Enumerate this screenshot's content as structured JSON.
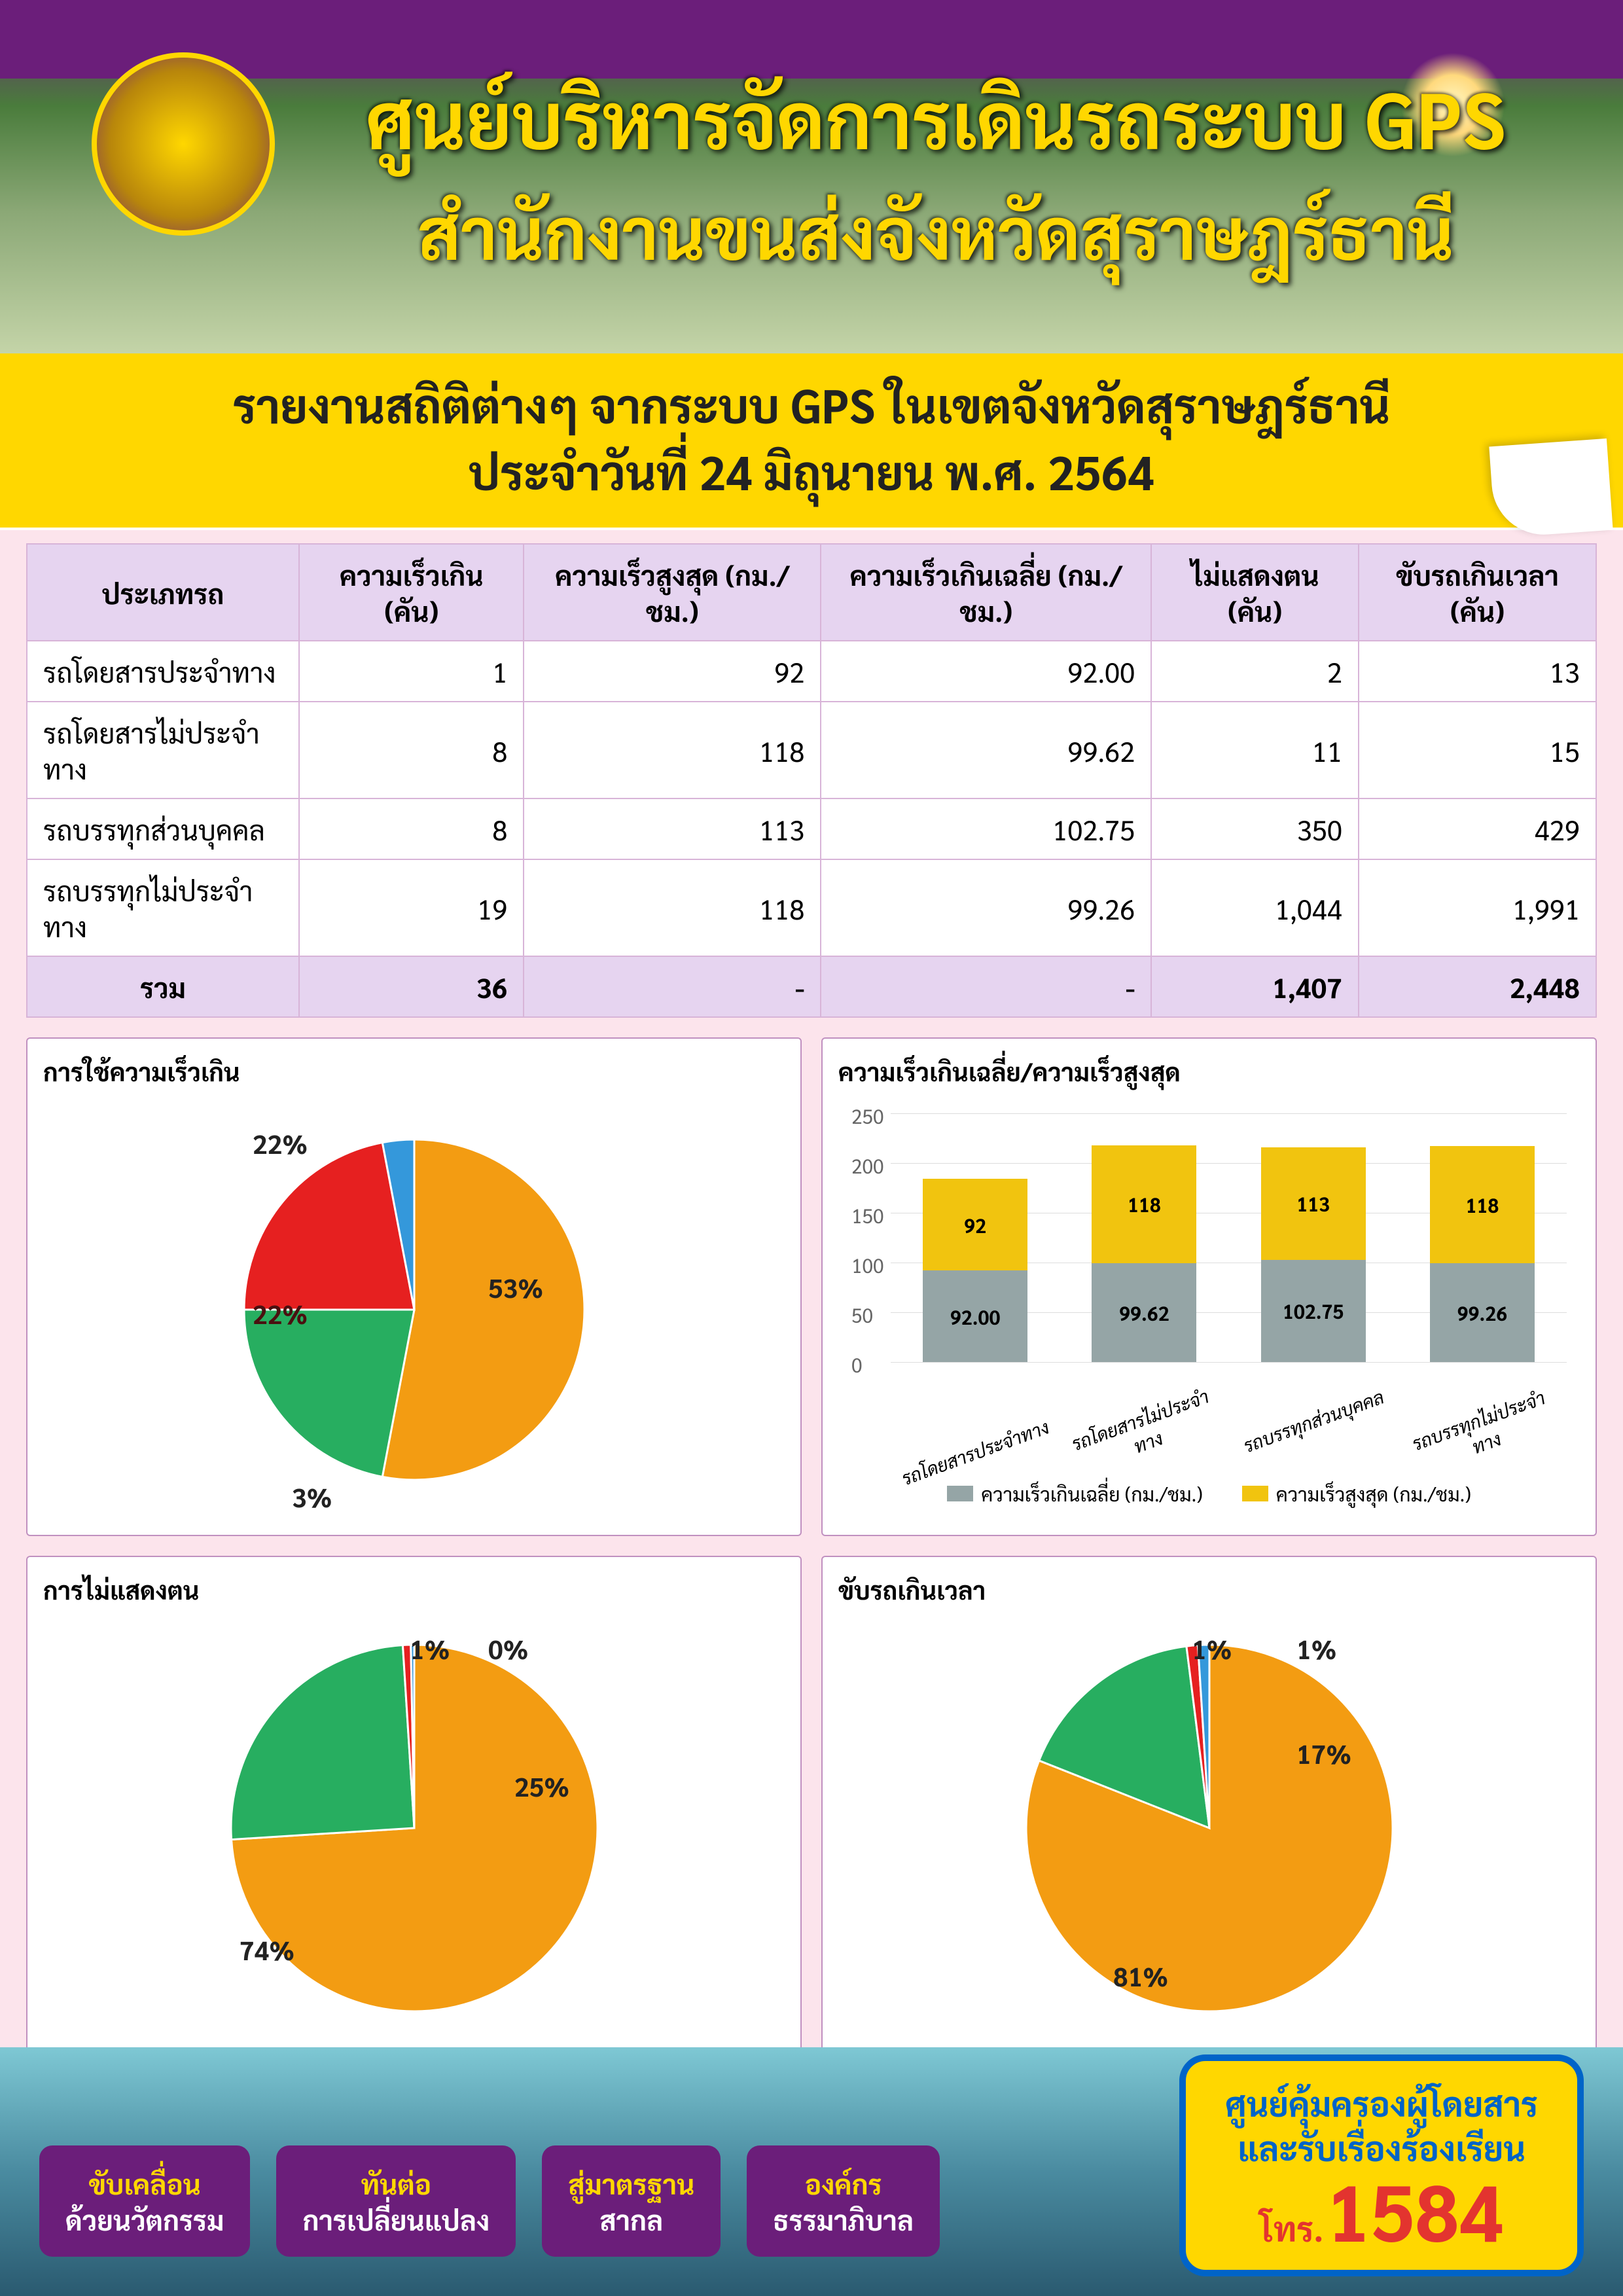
{
  "header": {
    "title_main": "ศูนย์บริหารจัดการเดินรถระบบ GPS",
    "title_sub": "สำนักงานขนส่งจังหวัดสุราษฎร์ธานี"
  },
  "banner": {
    "line1": "รายงานสถิติต่างๆ จากระบบ GPS ในเขตจังหวัดสุราษฎร์ธานี",
    "line2": "ประจำวันที่ 24  มิถุนายน  พ.ศ. 2564"
  },
  "table": {
    "columns": [
      "ประเภทรถ",
      "ความเร็วเกิน (คัน)",
      "ความเร็วสูงสุด (กม./ชม.)",
      "ความเร็วเกินเฉลี่ย (กม./ชม.)",
      "ไม่แสดงตน (คัน)",
      "ขับรถเกินเวลา (คัน)"
    ],
    "rows": [
      [
        "รถโดยสารประจำทาง",
        "1",
        "92",
        "92.00",
        "2",
        "13"
      ],
      [
        "รถโดยสารไม่ประจำทาง",
        "8",
        "118",
        "99.62",
        "11",
        "15"
      ],
      [
        "รถบรรทุกส่วนบุคคล",
        "8",
        "113",
        "102.75",
        "350",
        "429"
      ],
      [
        "รถบรรทุกไม่ประจำทาง",
        "19",
        "118",
        "99.26",
        "1,044",
        "1,991"
      ]
    ],
    "total_label": "รวม",
    "total": [
      "36",
      "-",
      "-",
      "1,407",
      "2,448"
    ]
  },
  "colors": {
    "orange": "#f39c12",
    "green": "#27ae60",
    "red": "#e62020",
    "blue": "#3498db",
    "grey": "#95a5a6",
    "yellow": "#f1c40f"
  },
  "pie1": {
    "title": "การใช้ความเร็วเกิน",
    "slices": [
      {
        "label": "53%",
        "value": 53,
        "color": "#f39c12"
      },
      {
        "label": "22%",
        "value": 22,
        "color": "#27ae60"
      },
      {
        "label": "22%",
        "value": 22,
        "color": "#e62020"
      },
      {
        "label": "3%",
        "value": 3,
        "color": "#3498db"
      }
    ]
  },
  "barchart": {
    "title": "ความเร็วเกินเฉลี่ย/ความเร็วสูงสุด",
    "ylim": 250,
    "yticks": [
      0,
      50,
      100,
      150,
      200,
      250
    ],
    "categories": [
      "รถโดยสารประจำทาง",
      "รถโดยสารไม่ประจำทาง",
      "รถบรรทุกส่วนบุคคล",
      "รถบรรทุกไม่ประจำทาง"
    ],
    "series_grey_label": "ความเร็วเกินเฉลี่ย (กม./ชม.)",
    "series_yellow_label": "ความเร็วสูงสุด (กม./ชม.)",
    "grey_values": [
      "92.00",
      "99.62",
      "102.75",
      "99.26"
    ],
    "yellow_values": [
      "92",
      "118",
      "113",
      "118"
    ],
    "grey_numeric": [
      92.0,
      99.62,
      102.75,
      99.26
    ],
    "yellow_numeric": [
      92,
      118,
      113,
      118
    ]
  },
  "pie2": {
    "title": "การไม่แสดงตน",
    "slices": [
      {
        "label": "74%",
        "value": 74,
        "color": "#f39c12"
      },
      {
        "label": "25%",
        "value": 25,
        "color": "#27ae60"
      },
      {
        "label": "1%",
        "value": 0.7,
        "color": "#e62020"
      },
      {
        "label": "0%",
        "value": 0.3,
        "color": "#3498db"
      }
    ]
  },
  "pie3": {
    "title": "ขับรถเกินเวลา",
    "slices": [
      {
        "label": "81%",
        "value": 81,
        "color": "#f39c12"
      },
      {
        "label": "17%",
        "value": 17,
        "color": "#27ae60"
      },
      {
        "label": "1%",
        "value": 1,
        "color": "#e62020"
      },
      {
        "label": "1%",
        "value": 1,
        "color": "#3498db"
      }
    ]
  },
  "footer": {
    "badges": [
      {
        "line1": "ขับเคลื่อน",
        "line2": "ด้วยนวัตกรรม"
      },
      {
        "line1": "ทันต่อ",
        "line2": "การเปลี่ยนแปลง"
      },
      {
        "line1": "สู่มาตรฐาน",
        "line2": "สากล"
      },
      {
        "line1": "องค์กร",
        "line2": "ธรรมาภิบาล"
      }
    ],
    "hotline": {
      "line1": "ศูนย์คุ้มครองผู้โดยสาร",
      "line2": "และรับเรื่องร้องเรียน",
      "tel_label": "โทร.",
      "tel_number": "1584"
    }
  }
}
